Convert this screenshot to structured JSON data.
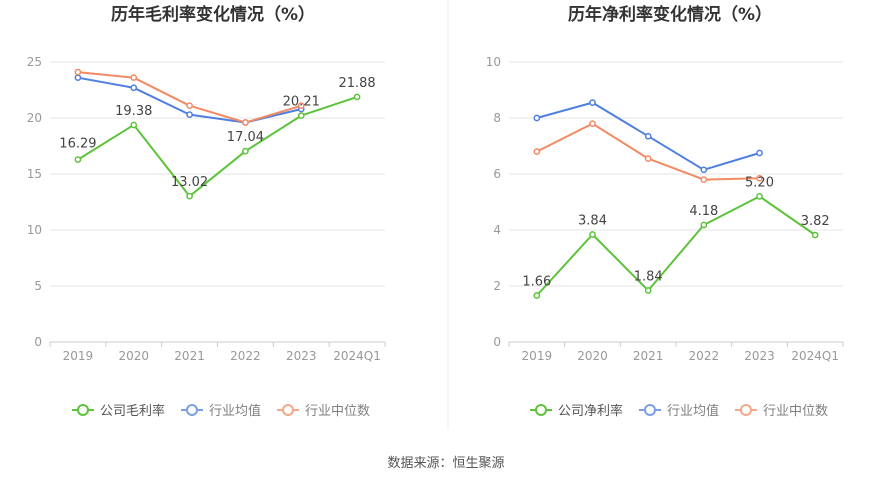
{
  "source_label": "数据来源：恒生聚源",
  "colors": {
    "company": "#5cc33a",
    "industry_avg": "#4f7fe0",
    "industry_median": "#f28a64"
  },
  "chart_data": [
    {
      "type": "line",
      "title": "历年毛利率变化情况（%）",
      "categories": [
        "2019",
        "2020",
        "2021",
        "2022",
        "2023",
        "2024Q1"
      ],
      "ylim": [
        0,
        25
      ],
      "yticks": [
        0,
        5,
        10,
        15,
        20,
        25
      ],
      "series": [
        {
          "name": "公司毛利率",
          "key": "company",
          "values": [
            16.29,
            19.38,
            13.02,
            17.04,
            20.21,
            21.88
          ],
          "labels": [
            "16.29",
            "19.38",
            "13.02",
            "17.04",
            "20.21",
            "21.88"
          ]
        },
        {
          "name": "行业均值",
          "key": "industry_avg",
          "values": [
            23.6,
            22.7,
            20.3,
            19.6,
            20.8,
            null
          ]
        },
        {
          "name": "行业中位数",
          "key": "industry_median",
          "values": [
            24.1,
            23.6,
            21.1,
            19.6,
            21.1,
            null
          ]
        }
      ]
    },
    {
      "type": "line",
      "title": "历年净利率变化情况（%）",
      "categories": [
        "2019",
        "2020",
        "2021",
        "2022",
        "2023",
        "2024Q1"
      ],
      "ylim": [
        0,
        10
      ],
      "yticks": [
        0,
        2,
        4,
        6,
        8,
        10
      ],
      "series": [
        {
          "name": "公司净利率",
          "key": "company",
          "values": [
            1.66,
            3.84,
            1.84,
            4.18,
            5.2,
            3.82
          ],
          "labels": [
            "1.66",
            "3.84",
            "1.84",
            "4.18",
            "5.20",
            "3.82"
          ]
        },
        {
          "name": "行业均值",
          "key": "industry_avg",
          "values": [
            8.0,
            8.55,
            7.35,
            6.15,
            6.75,
            null
          ]
        },
        {
          "name": "行业中位数",
          "key": "industry_median",
          "values": [
            6.8,
            7.8,
            6.55,
            5.8,
            5.85,
            null
          ]
        }
      ]
    }
  ]
}
